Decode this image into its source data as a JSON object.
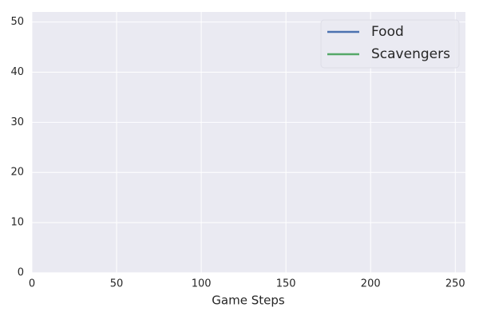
{
  "chart_data": {
    "type": "line",
    "x": [],
    "series": [
      {
        "name": "Food",
        "color": "#4c72b0",
        "values": []
      },
      {
        "name": "Scavengers",
        "color": "#55a868",
        "values": []
      }
    ],
    "x_label": "Game Steps",
    "xlim": [
      0,
      256
    ],
    "xticks": [
      0,
      50,
      100,
      150,
      200,
      250
    ],
    "ylim": [
      0,
      52
    ],
    "yticks": [
      0,
      10,
      20,
      30,
      40,
      50
    ],
    "grid": true,
    "legend": "upper right"
  }
}
